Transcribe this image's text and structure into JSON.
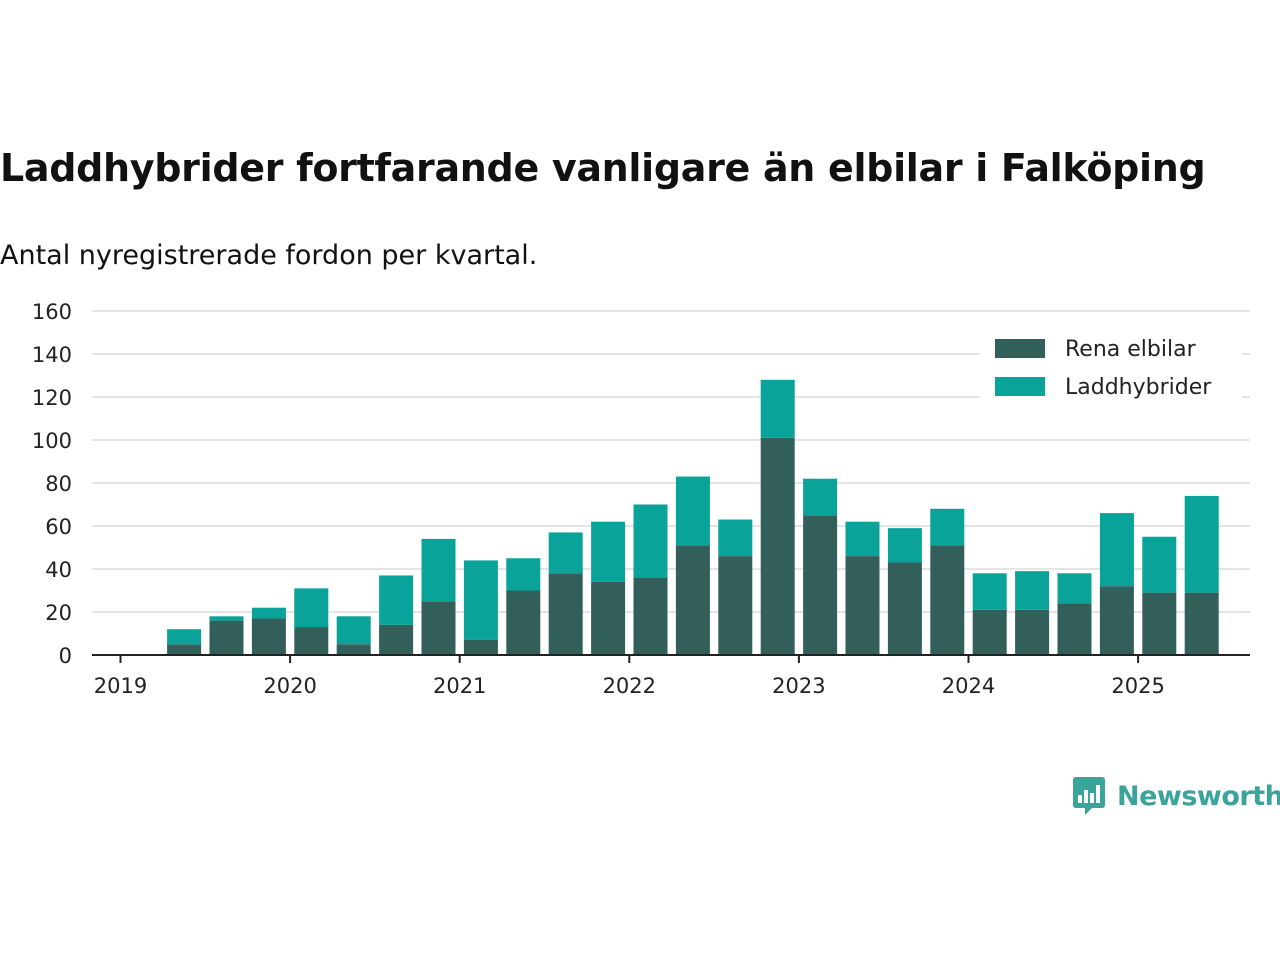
{
  "chart_data": {
    "type": "bar",
    "stacked": true,
    "title": "Laddhybrider fortfarande vanligare än elbilar i Falköping",
    "subtitle": "Antal nyregistrerade fordon per kvartal.",
    "x": [
      "2019-Q2",
      "2019-Q3",
      "2019-Q4",
      "2020-Q1",
      "2020-Q2",
      "2020-Q3",
      "2020-Q4",
      "2021-Q1",
      "2021-Q2",
      "2021-Q3",
      "2021-Q4",
      "2022-Q1",
      "2022-Q2",
      "2022-Q3",
      "2022-Q4",
      "2023-Q1",
      "2023-Q2",
      "2023-Q3",
      "2023-Q4",
      "2024-Q1",
      "2024-Q2",
      "2024-Q3",
      "2024-Q4",
      "2025-Q1",
      "2025-Q2"
    ],
    "x_ticks": [
      "2019",
      "2020",
      "2021",
      "2022",
      "2023",
      "2024",
      "2025"
    ],
    "y_ticks": [
      "0",
      "20",
      "40",
      "60",
      "80",
      "100",
      "120",
      "140",
      "160"
    ],
    "ylim": [
      0,
      160
    ],
    "grid": true,
    "legend_position": "top-right",
    "series": [
      {
        "name": "Rena elbilar",
        "color": "#335f5a",
        "values": [
          5,
          16,
          17,
          13,
          5,
          14,
          25,
          7,
          30,
          38,
          34,
          36,
          51,
          46,
          101,
          65,
          46,
          43,
          51,
          21,
          21,
          24,
          32,
          29,
          29
        ]
      },
      {
        "name": "Laddhybrider",
        "color": "#09a39a",
        "values": [
          7,
          2,
          5,
          18,
          13,
          23,
          29,
          37,
          15,
          19,
          28,
          34,
          32,
          17,
          27,
          17,
          16,
          16,
          17,
          17,
          18,
          14,
          34,
          26,
          45
        ]
      }
    ]
  },
  "brand": {
    "name": "Newsworthy",
    "color": "#3aa39a"
  }
}
